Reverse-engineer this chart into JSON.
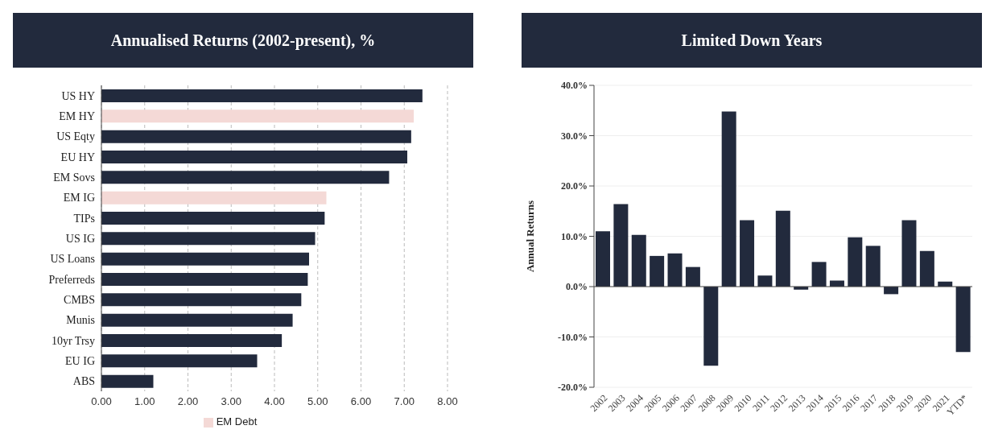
{
  "chart_data": [
    {
      "type": "bar",
      "title": "Annualised Returns (2002-present), %",
      "orientation": "horizontal",
      "stacked": true,
      "categories": [
        "US HY",
        "EM HY",
        "US Eqty",
        "EU HY",
        "EM Sovs",
        "EM IG",
        "TIPs",
        "US IG",
        "US Loans",
        "Preferreds",
        "CMBS",
        "Munis",
        "10yr Trsy",
        "EU IG",
        "ABS"
      ],
      "series": [
        {
          "color": "#222a3d",
          "values": [
            7.42,
            null,
            7.16,
            7.07,
            6.65,
            null,
            5.16,
            4.94,
            4.8,
            4.77,
            4.62,
            4.42,
            4.17,
            3.6,
            1.2
          ]
        },
        {
          "name": "EM Debt",
          "color": "#f4d9d6",
          "values": [
            null,
            7.22,
            null,
            null,
            null,
            5.2,
            null,
            null,
            null,
            null,
            null,
            null,
            null,
            null,
            null
          ]
        }
      ],
      "xlim": [
        0,
        8
      ],
      "xticks": [
        {
          "value": 0,
          "label": "0.00"
        },
        {
          "value": 1,
          "label": "1.00"
        },
        {
          "value": 2,
          "label": "2.00"
        },
        {
          "value": 3,
          "label": "3.00"
        },
        {
          "value": 4,
          "label": "4.00"
        },
        {
          "value": 5,
          "label": "5.00"
        },
        {
          "value": 6,
          "label": "6.00"
        },
        {
          "value": 7,
          "label": "7.00"
        },
        {
          "value": 8,
          "label": "8.00"
        }
      ],
      "grid": "x",
      "legend": "bottom"
    },
    {
      "type": "bar",
      "title": "Limited Down Years",
      "ylabel": "Annual Returns",
      "categories": [
        "2002",
        "2003",
        "2004",
        "2005",
        "2006",
        "2007",
        "2008",
        "2009",
        "2010",
        "2011",
        "2012",
        "2013",
        "2014",
        "2015",
        "2016",
        "2017",
        "2018",
        "2019",
        "2020",
        "2021",
        "YTD*"
      ],
      "series": [
        {
          "color": "#222a3d",
          "values": [
            11.0,
            16.4,
            10.3,
            6.1,
            6.6,
            3.9,
            -15.7,
            34.8,
            13.2,
            2.2,
            15.1,
            -0.6,
            4.9,
            1.2,
            9.8,
            8.1,
            -1.5,
            13.2,
            7.1,
            1.0,
            -13.0
          ]
        }
      ],
      "ylim": [
        -20,
        40
      ],
      "yticks": [
        {
          "value": -20,
          "label": "-20.0%"
        },
        {
          "value": -10,
          "label": "-10.0%"
        },
        {
          "value": 0,
          "label": "0.0%"
        },
        {
          "value": 10,
          "label": "10.0%"
        },
        {
          "value": 20,
          "label": "20.0%"
        },
        {
          "value": 30,
          "label": "30.0%"
        },
        {
          "value": 40,
          "label": "40.0%"
        }
      ],
      "grid": "y"
    }
  ]
}
